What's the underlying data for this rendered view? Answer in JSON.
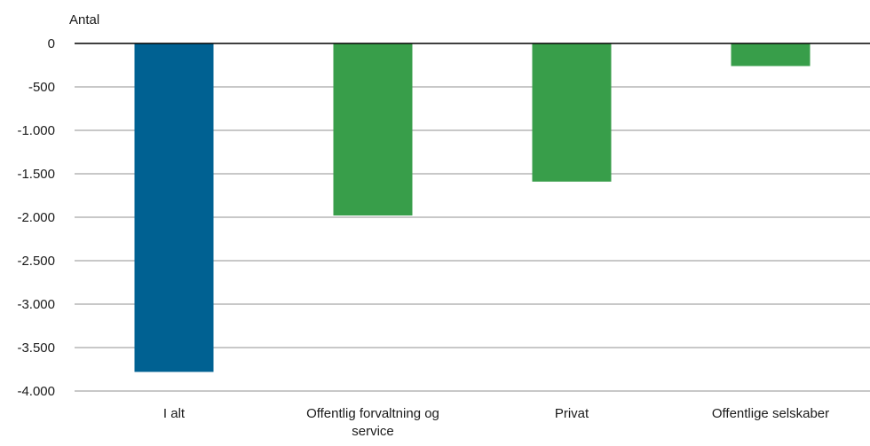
{
  "chart_data": {
    "type": "bar",
    "ylabel": "Antal",
    "categories": [
      "I alt",
      "Offentlig forvaltning og service",
      "Privat",
      "Offentlige selskaber"
    ],
    "category_label_lines": [
      [
        "I alt"
      ],
      [
        "Offentlig forvaltning og",
        "service"
      ],
      [
        "Privat"
      ],
      [
        "Offentlige selskaber"
      ]
    ],
    "values": [
      -3780,
      -1980,
      -1590,
      -260
    ],
    "bar_colors": [
      "#006192",
      "#389e4a",
      "#389e4a",
      "#389e4a"
    ],
    "ylim": [
      -4000,
      0
    ],
    "yticks": [
      0,
      -500,
      -1000,
      -1500,
      -2000,
      -2500,
      -3000,
      -3500,
      -4000
    ],
    "ytick_labels": [
      "0",
      "-500",
      "-1.000",
      "-1.500",
      "-2.000",
      "-2.500",
      "-3.000",
      "-3.500",
      "-4.000"
    ],
    "grid": true,
    "legend": "none"
  }
}
